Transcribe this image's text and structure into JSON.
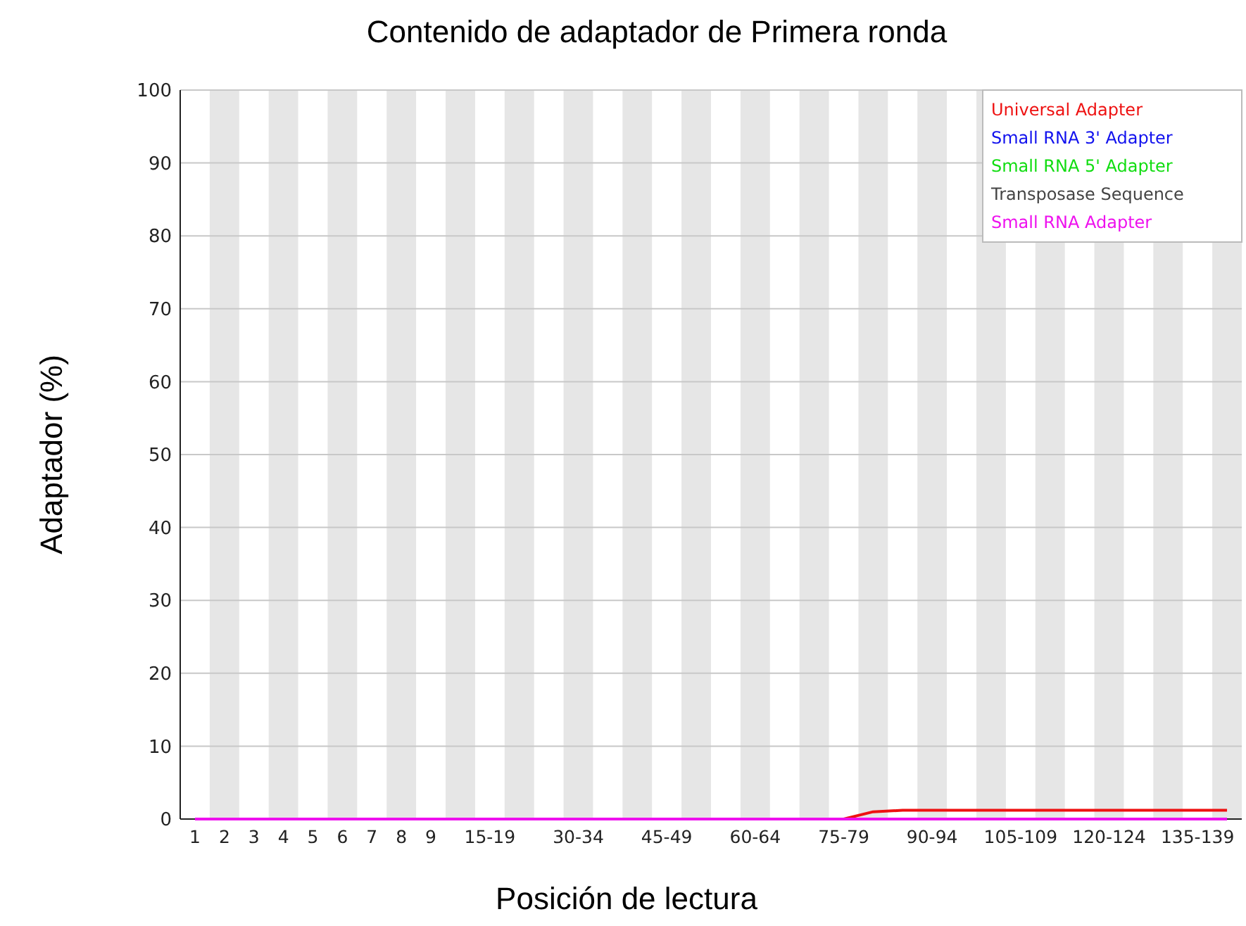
{
  "chart_data": {
    "type": "line",
    "title": "Contenido de adaptador de Primera ronda",
    "xlabel": "Posición de lectura",
    "ylabel": "Adaptador (%)",
    "categories": [
      "1",
      "2",
      "3",
      "4",
      "5",
      "6",
      "7",
      "8",
      "9",
      null,
      "15-19",
      null,
      null,
      "30-34",
      null,
      null,
      "45-49",
      null,
      null,
      "60-64",
      null,
      null,
      "75-79",
      null,
      null,
      "90-94",
      null,
      null,
      "105-109",
      null,
      null,
      "120-124",
      null,
      null,
      "135-139",
      null
    ],
    "series": [
      {
        "name": "Universal Adapter",
        "color": "#ee1111",
        "values": [
          null,
          null,
          null,
          null,
          null,
          null,
          null,
          null,
          null,
          null,
          null,
          null,
          null,
          null,
          null,
          null,
          null,
          null,
          null,
          null,
          null,
          null,
          0,
          1.0,
          1.2,
          1.2,
          1.2,
          1.2,
          1.2,
          1.2,
          1.2,
          1.2,
          1.2,
          1.2,
          1.2,
          1.2
        ]
      },
      {
        "name": "Small RNA 3' Adapter",
        "color": "#1111ee",
        "values": [
          null,
          null,
          null,
          null,
          null,
          null,
          null,
          null,
          null,
          null,
          null,
          null,
          null,
          null,
          null,
          null,
          null,
          null,
          null,
          null,
          null,
          null,
          null,
          null,
          null,
          null,
          null,
          null,
          null,
          null,
          null,
          null,
          null,
          null,
          null,
          null
        ]
      },
      {
        "name": "Small RNA 5' Adapter",
        "color": "#11dd11",
        "values": [
          null,
          null,
          null,
          null,
          null,
          null,
          null,
          null,
          null,
          null,
          null,
          null,
          null,
          null,
          null,
          null,
          null,
          null,
          null,
          null,
          null,
          null,
          null,
          null,
          null,
          null,
          null,
          null,
          null,
          null,
          null,
          null,
          null,
          null,
          null,
          null
        ]
      },
      {
        "name": "Transposase Sequence",
        "color": "#444444",
        "values": [
          null,
          null,
          null,
          null,
          null,
          null,
          null,
          null,
          null,
          null,
          null,
          null,
          null,
          null,
          null,
          null,
          null,
          null,
          null,
          null,
          null,
          null,
          null,
          null,
          null,
          null,
          null,
          null,
          null,
          null,
          null,
          null,
          null,
          null,
          null,
          null
        ]
      },
      {
        "name": "Small RNA Adapter",
        "color": "#ee11ee",
        "values": [
          0,
          0,
          0,
          0,
          0,
          0,
          0,
          0,
          0,
          0,
          0,
          0,
          0,
          0,
          0,
          0,
          0,
          0,
          0,
          0,
          0,
          0,
          0,
          0,
          0,
          0,
          0,
          0,
          0,
          0,
          0,
          0,
          0,
          0,
          0,
          0
        ]
      }
    ],
    "ylim": [
      0,
      100
    ],
    "yticks": [
      0,
      10,
      20,
      30,
      40,
      50,
      60,
      70,
      80,
      90,
      100
    ],
    "grid": "y",
    "legend": "top right",
    "marker": "none",
    "line_style": "solid"
  }
}
